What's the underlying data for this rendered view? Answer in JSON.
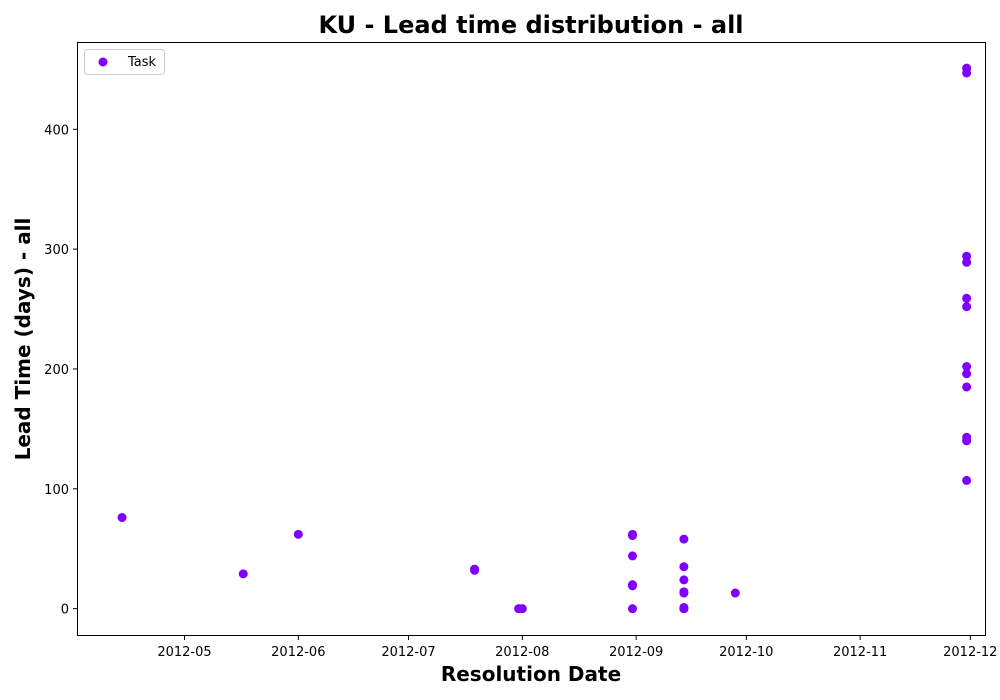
{
  "chart_data": {
    "type": "scatter",
    "title": "KU - Lead time distribution - all",
    "xlabel": "Resolution Date",
    "ylabel": "Lead Time (days) - all",
    "xlim": [
      "2012-04-02",
      "2012-12-05"
    ],
    "ylim": [
      -22,
      472
    ],
    "x_ticks": [
      "2012-05",
      "2012-06",
      "2012-07",
      "2012-08",
      "2012-09",
      "2012-10",
      "2012-11",
      "2012-12"
    ],
    "y_ticks": [
      0,
      100,
      200,
      300,
      400
    ],
    "grid": false,
    "legend": "upper-left",
    "series": [
      {
        "name": "Task",
        "color": "#7f00ff",
        "points": [
          {
            "x": "2012-04-14",
            "y": 76
          },
          {
            "x": "2012-05-17",
            "y": 29
          },
          {
            "x": "2012-06-01",
            "y": 62
          },
          {
            "x": "2012-07-19",
            "y": 33
          },
          {
            "x": "2012-07-19",
            "y": 32
          },
          {
            "x": "2012-07-31",
            "y": 0
          },
          {
            "x": "2012-08-01",
            "y": 0
          },
          {
            "x": "2012-08-31",
            "y": 62
          },
          {
            "x": "2012-08-31",
            "y": 61
          },
          {
            "x": "2012-08-31",
            "y": 44
          },
          {
            "x": "2012-08-31",
            "y": 20
          },
          {
            "x": "2012-08-31",
            "y": 19
          },
          {
            "x": "2012-08-31",
            "y": 0
          },
          {
            "x": "2012-09-14",
            "y": 58
          },
          {
            "x": "2012-09-14",
            "y": 35
          },
          {
            "x": "2012-09-14",
            "y": 24
          },
          {
            "x": "2012-09-14",
            "y": 14
          },
          {
            "x": "2012-09-14",
            "y": 13
          },
          {
            "x": "2012-09-14",
            "y": 1
          },
          {
            "x": "2012-09-14",
            "y": 0
          },
          {
            "x": "2012-09-14",
            "y": 0
          },
          {
            "x": "2012-09-28",
            "y": 13
          },
          {
            "x": "2012-11-30",
            "y": 451
          },
          {
            "x": "2012-11-30",
            "y": 447
          },
          {
            "x": "2012-11-30",
            "y": 294
          },
          {
            "x": "2012-11-30",
            "y": 289
          },
          {
            "x": "2012-11-30",
            "y": 259
          },
          {
            "x": "2012-11-30",
            "y": 252
          },
          {
            "x": "2012-11-30",
            "y": 202
          },
          {
            "x": "2012-11-30",
            "y": 196
          },
          {
            "x": "2012-11-30",
            "y": 185
          },
          {
            "x": "2012-11-30",
            "y": 143
          },
          {
            "x": "2012-11-30",
            "y": 140
          },
          {
            "x": "2012-11-30",
            "y": 107
          }
        ]
      }
    ]
  }
}
